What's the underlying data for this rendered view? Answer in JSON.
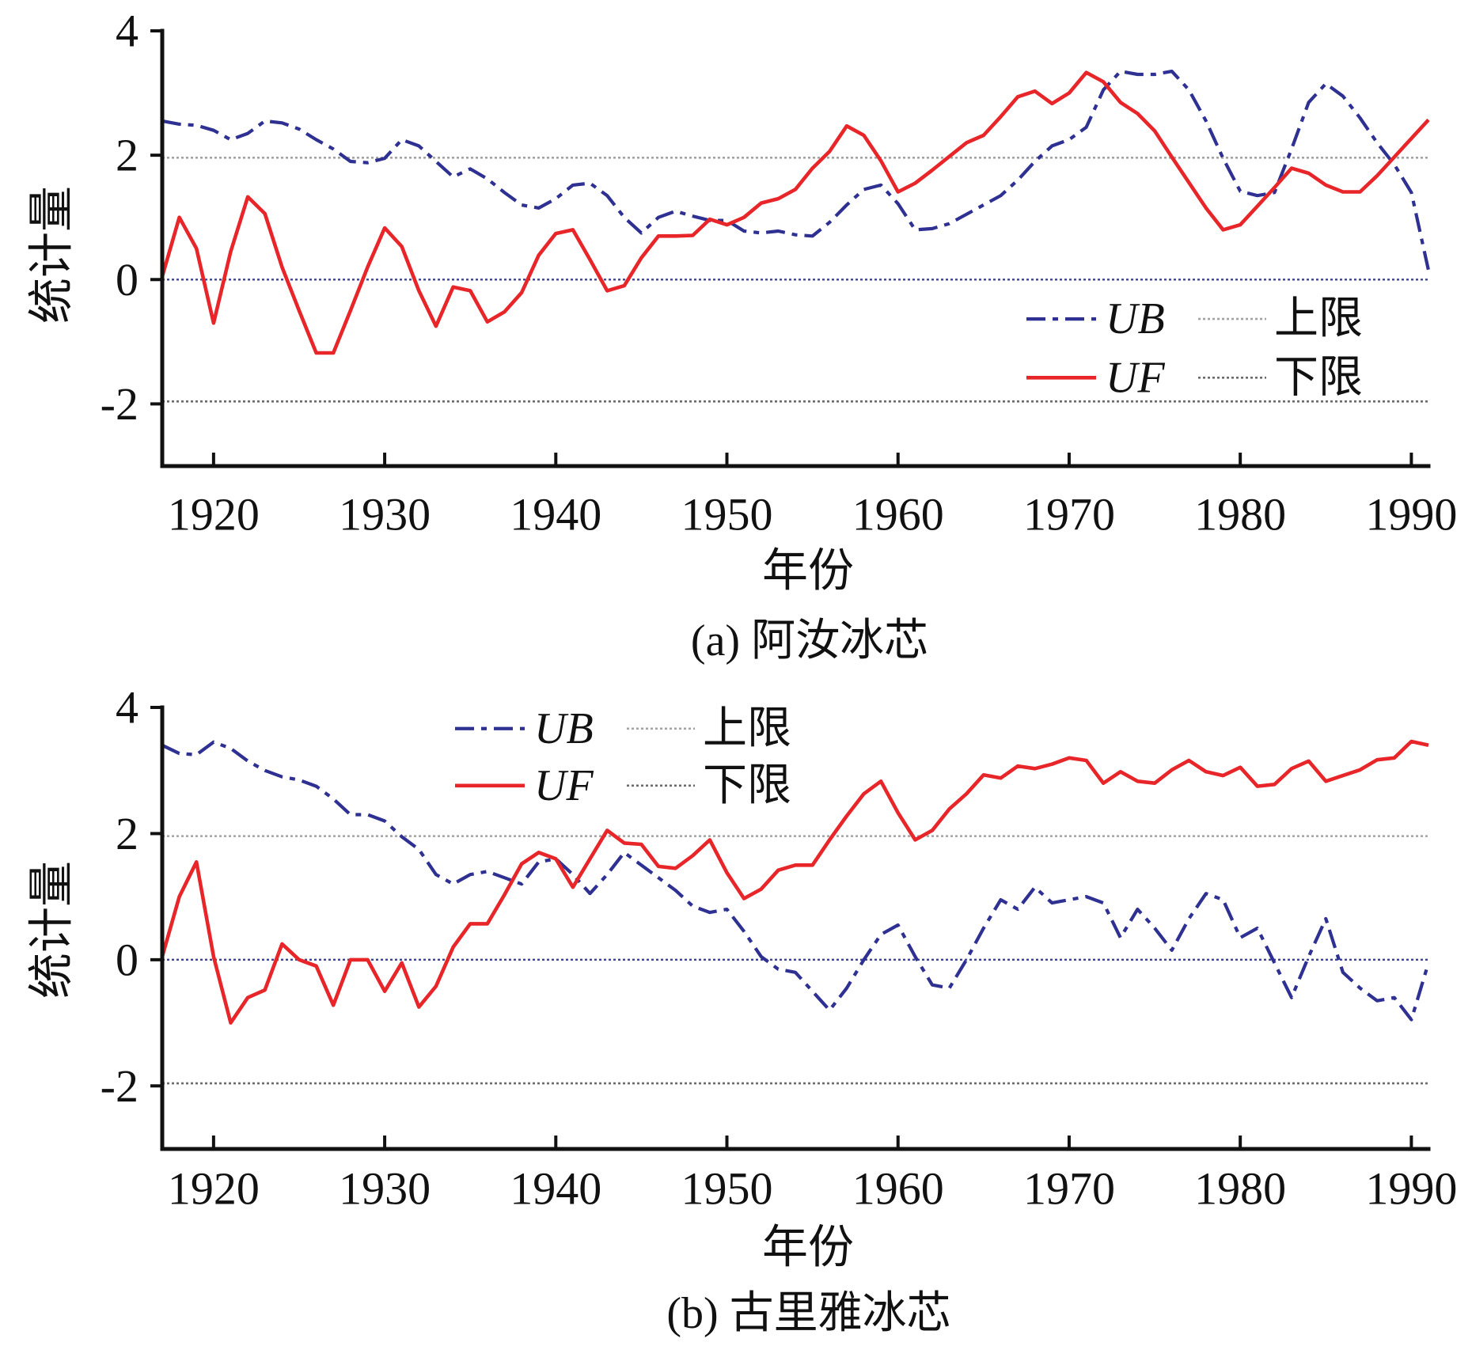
{
  "chart_data": [
    {
      "type": "line",
      "caption": "(a) 阿汝冰芯",
      "xlabel": "年份",
      "ylabel": "统计量",
      "xlim": [
        1917,
        1991
      ],
      "ylim": [
        -3,
        4
      ],
      "x_ticks": [
        1920,
        1930,
        1940,
        1950,
        1960,
        1970,
        1980,
        1990
      ],
      "y_ticks": [
        4,
        2,
        0,
        -2
      ],
      "grid": false,
      "legend_position": "lower-right",
      "x": [
        1917,
        1918,
        1919,
        1920,
        1921,
        1922,
        1923,
        1924,
        1925,
        1926,
        1927,
        1928,
        1929,
        1930,
        1931,
        1932,
        1933,
        1934,
        1935,
        1936,
        1937,
        1938,
        1939,
        1940,
        1941,
        1942,
        1943,
        1944,
        1945,
        1946,
        1947,
        1948,
        1949,
        1950,
        1951,
        1952,
        1953,
        1954,
        1955,
        1956,
        1957,
        1958,
        1959,
        1960,
        1961,
        1962,
        1963,
        1964,
        1965,
        1966,
        1967,
        1968,
        1969,
        1970,
        1971,
        1972,
        1973,
        1974,
        1975,
        1976,
        1977,
        1978,
        1979,
        1980,
        1981,
        1982,
        1983,
        1984,
        1985,
        1986,
        1987,
        1988,
        1989,
        1990,
        1991
      ],
      "series": [
        {
          "name": "UB",
          "style": "dash-dot",
          "color": "#2e3192",
          "values": [
            2.55,
            2.5,
            2.48,
            2.4,
            2.25,
            2.35,
            2.55,
            2.52,
            2.42,
            2.25,
            2.1,
            1.9,
            1.88,
            1.95,
            2.25,
            2.15,
            1.9,
            1.65,
            1.78,
            1.62,
            1.4,
            1.2,
            1.15,
            1.3,
            1.52,
            1.55,
            1.35,
            1.0,
            0.75,
            1.0,
            1.1,
            1.02,
            0.95,
            0.95,
            0.78,
            0.75,
            0.78,
            0.72,
            0.7,
            0.92,
            1.2,
            1.45,
            1.52,
            1.22,
            0.8,
            0.82,
            0.9,
            1.05,
            1.2,
            1.35,
            1.6,
            1.9,
            2.15,
            2.25,
            2.45,
            3.05,
            3.35,
            3.3,
            3.3,
            3.35,
            3.05,
            2.55,
            1.95,
            1.42,
            1.35,
            1.4,
            2.1,
            2.85,
            3.15,
            2.95,
            2.6,
            2.2,
            1.85,
            1.4,
            0.15
          ]
        },
        {
          "name": "UF",
          "style": "solid",
          "color": "#e8262a",
          "values": [
            0.05,
            1.0,
            0.5,
            -0.7,
            0.45,
            1.33,
            1.06,
            0.2,
            -0.5,
            -1.18,
            -1.18,
            -0.5,
            0.2,
            0.83,
            0.53,
            -0.18,
            -0.75,
            -0.12,
            -0.18,
            -0.68,
            -0.52,
            -0.21,
            0.39,
            0.74,
            0.8,
            0.32,
            -0.18,
            -0.1,
            0.35,
            0.7,
            0.7,
            0.71,
            0.97,
            0.88,
            1.0,
            1.23,
            1.3,
            1.45,
            1.79,
            2.06,
            2.47,
            2.32,
            1.91,
            1.41,
            1.55,
            1.76,
            1.98,
            2.2,
            2.32,
            2.62,
            2.94,
            3.03,
            2.83,
            3.0,
            3.33,
            3.18,
            2.85,
            2.67,
            2.39,
            1.97,
            1.56,
            1.15,
            0.8,
            0.88,
            1.18,
            1.48,
            1.79,
            1.71,
            1.52,
            1.41,
            1.41,
            1.67,
            1.97,
            2.27,
            2.57
          ]
        }
      ],
      "reference_lines": [
        {
          "name": "上限",
          "y": 1.96,
          "color": "#a3a3a3"
        },
        {
          "name": "下限",
          "y": -1.96,
          "color": "#6b6b6b"
        }
      ],
      "zero_line": {
        "y": 0,
        "color": "#3d40a6"
      }
    },
    {
      "type": "line",
      "caption": "(b) 古里雅冰芯",
      "xlabel": "年份",
      "ylabel": "统计量",
      "xlim": [
        1917,
        1991
      ],
      "ylim": [
        -3,
        4
      ],
      "x_ticks": [
        1920,
        1930,
        1940,
        1950,
        1960,
        1970,
        1980,
        1990
      ],
      "y_ticks": [
        4,
        2,
        0,
        -2
      ],
      "grid": false,
      "legend_position": "upper-left",
      "x": [
        1917,
        1918,
        1919,
        1920,
        1921,
        1922,
        1923,
        1924,
        1925,
        1926,
        1927,
        1928,
        1929,
        1930,
        1931,
        1932,
        1933,
        1934,
        1935,
        1936,
        1937,
        1938,
        1939,
        1940,
        1941,
        1942,
        1943,
        1944,
        1945,
        1946,
        1947,
        1948,
        1949,
        1950,
        1951,
        1952,
        1953,
        1954,
        1955,
        1956,
        1957,
        1958,
        1959,
        1960,
        1961,
        1962,
        1963,
        1964,
        1965,
        1966,
        1967,
        1968,
        1969,
        1970,
        1971,
        1972,
        1973,
        1974,
        1975,
        1976,
        1977,
        1978,
        1979,
        1980,
        1981,
        1982,
        1983,
        1984,
        1985,
        1986,
        1987,
        1988,
        1989,
        1990,
        1991
      ],
      "series": [
        {
          "name": "UB",
          "style": "dash-dot",
          "color": "#2e3192",
          "values": [
            3.4,
            3.27,
            3.25,
            3.45,
            3.35,
            3.15,
            3.0,
            2.9,
            2.85,
            2.75,
            2.55,
            2.3,
            2.3,
            2.2,
            1.95,
            1.75,
            1.35,
            1.2,
            1.35,
            1.4,
            1.3,
            1.2,
            1.55,
            1.6,
            1.35,
            1.05,
            1.35,
            1.7,
            1.5,
            1.3,
            1.1,
            0.85,
            0.75,
            0.8,
            0.45,
            0.05,
            -0.15,
            -0.2,
            -0.5,
            -0.8,
            -0.45,
            0.0,
            0.4,
            0.55,
            0.05,
            -0.4,
            -0.45,
            0.0,
            0.5,
            0.95,
            0.8,
            1.15,
            0.9,
            0.95,
            1.0,
            0.9,
            0.35,
            0.8,
            0.5,
            0.15,
            0.65,
            1.05,
            0.95,
            0.35,
            0.5,
            -0.05,
            -0.6,
            0.05,
            0.65,
            -0.2,
            -0.45,
            -0.65,
            -0.6,
            -0.95,
            -0.05
          ]
        },
        {
          "name": "UF",
          "style": "solid",
          "color": "#e8262a",
          "values": [
            0.05,
            1.0,
            1.55,
            0.05,
            -1.0,
            -0.6,
            -0.48,
            0.25,
            0.0,
            -0.1,
            -0.72,
            0.0,
            0.0,
            -0.5,
            -0.05,
            -0.75,
            -0.42,
            0.2,
            0.57,
            0.57,
            1.03,
            1.52,
            1.7,
            1.6,
            1.15,
            1.6,
            2.05,
            1.85,
            1.83,
            1.48,
            1.45,
            1.65,
            1.9,
            1.38,
            0.97,
            1.12,
            1.42,
            1.5,
            1.5,
            1.9,
            2.28,
            2.63,
            2.83,
            2.33,
            1.9,
            2.05,
            2.39,
            2.63,
            2.93,
            2.88,
            3.07,
            3.03,
            3.1,
            3.2,
            3.16,
            2.8,
            2.98,
            2.83,
            2.8,
            3.01,
            3.16,
            2.98,
            2.92,
            3.05,
            2.75,
            2.78,
            3.03,
            3.15,
            2.83,
            2.92,
            3.01,
            3.17,
            3.2,
            3.46,
            3.4
          ]
        }
      ],
      "reference_lines": [
        {
          "name": "上限",
          "y": 1.96,
          "color": "#a3a3a3"
        },
        {
          "name": "下限",
          "y": -1.96,
          "color": "#6b6b6b"
        }
      ],
      "zero_line": {
        "y": 0,
        "color": "#3d40a6"
      }
    }
  ]
}
